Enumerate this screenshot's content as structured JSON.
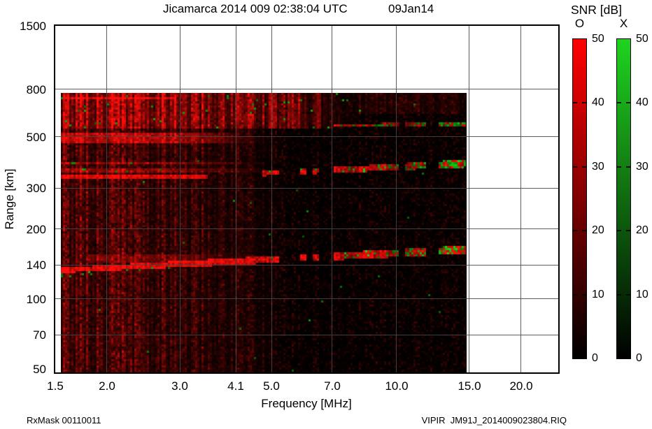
{
  "footer": {
    "left": "RxMask 00110011",
    "right": "VIPIR  JM91J_2014009023804.RIQ"
  },
  "chart_data": {
    "type": "heatmap",
    "title": "Jicamarca 2014 009 02:38:04 UTC",
    "date_label": "09Jan14",
    "xlabel": "Frequency [MHz]",
    "ylabel": "Range [km]",
    "x_scale": "log",
    "y_scale": "log",
    "xlim": [
      1.5,
      24.6
    ],
    "ylim": [
      48.3,
      1500
    ],
    "x_ticks": [
      {
        "v": 1.5,
        "label": "1.5"
      },
      {
        "v": 2.0,
        "label": "2.0"
      },
      {
        "v": 3.0,
        "label": "3.0"
      },
      {
        "v": 4.1,
        "label": "4.1"
      },
      {
        "v": 5.0,
        "label": "5.0"
      },
      {
        "v": 7.0,
        "label": "7.0"
      },
      {
        "v": 10.0,
        "label": "10.0"
      },
      {
        "v": 15.0,
        "label": "15.0"
      },
      {
        "v": 20.0,
        "label": "20.0"
      }
    ],
    "y_ticks": [
      {
        "v": 1500,
        "label": "1500"
      },
      {
        "v": 800,
        "label": "800"
      },
      {
        "v": 500,
        "label": "500"
      },
      {
        "v": 300,
        "label": "300"
      },
      {
        "v": 200,
        "label": "200"
      },
      {
        "v": 140,
        "label": "140"
      },
      {
        "v": 100,
        "label": "100"
      },
      {
        "v": 70,
        "label": "70"
      },
      {
        "v": 50,
        "label": "50"
      }
    ],
    "x_gridlines": [
      2.0,
      3.0,
      4.1,
      5.0,
      7.0,
      10.0,
      15.0,
      20.0
    ],
    "y_gridlines": [
      70,
      100,
      140,
      200,
      300,
      500,
      800
    ],
    "grid": true,
    "data_extent": {
      "f": [
        1.55,
        14.8
      ],
      "r": [
        48.3,
        770
      ]
    },
    "colorbar": {
      "title": "SNR [dB]",
      "min": 0,
      "max": 50,
      "ticks": [
        {
          "v": 50,
          "label": "50"
        },
        {
          "v": 40,
          "label": "40"
        },
        {
          "v": 30,
          "label": "30"
        },
        {
          "v": 20,
          "label": "20"
        },
        {
          "v": 10,
          "label": "10"
        },
        {
          "v": 0,
          "label": "0"
        }
      ],
      "dash_ticks": [
        40,
        30,
        20,
        10
      ],
      "modes": [
        {
          "label": "O",
          "top_color": "#ff0000",
          "bottom_color": "#000000"
        },
        {
          "label": "X",
          "top_color": "#1fd41f",
          "bottom_color": "#000000"
        }
      ]
    },
    "features": [
      {
        "name": "background-speckle",
        "kind": "speckle",
        "f": [
          1.55,
          14.8
        ],
        "r": [
          48,
          770
        ],
        "amp": 9,
        "green_speckle": 0.0015
      },
      {
        "name": "low-frequency-noise-haze",
        "kind": "haze",
        "f": [
          1.55,
          5.4
        ],
        "r": [
          48,
          770
        ],
        "amp": 26
      },
      {
        "name": "topside-spread-f-diffuse",
        "kind": "diffuse",
        "f": [
          1.55,
          8.2
        ],
        "r": [
          545,
          765
        ],
        "amp": 30,
        "fade_from": 4.6,
        "green_speckle": 0.015
      },
      {
        "name": "topside-faint-tail",
        "kind": "diffuse",
        "f": [
          8.0,
          14.8
        ],
        "r": [
          620,
          765
        ],
        "amp": 9,
        "fade_from": 14.0,
        "green_speckle": 0.006
      },
      {
        "name": "topside-cap-line",
        "kind": "hline",
        "f": [
          1.55,
          2.9
        ],
        "r": [
          728,
          744
        ],
        "amp": 26
      },
      {
        "name": "f-region-upper-band",
        "kind": "band",
        "f": [
          1.55,
          4.5
        ],
        "r": [
          468,
          516
        ],
        "amp": 34,
        "fade_from": 3.0
      },
      {
        "name": "f-region-strata",
        "kind": "strata",
        "f": [
          1.55,
          4.8
        ],
        "lines": [
          352,
          362,
          372,
          382
        ],
        "halfwidth": 3,
        "amp": 22,
        "fade_from": 2.8,
        "green_speckle": 0.06,
        "green_below_f": 2.7
      },
      {
        "name": "f-region-base-line",
        "kind": "hline",
        "f": [
          1.55,
          3.5
        ],
        "r": [
          330,
          342
        ],
        "amp": 38,
        "green_speckle": 0.05,
        "green_below_f": 2.7
      },
      {
        "name": "f-trace-oblique",
        "kind": "trace",
        "f": [
          4.75,
          14.8
        ],
        "r0": 346,
        "r1": 383,
        "halfwidth_km": 11,
        "amp": 40,
        "segmented": true,
        "green_frac": [
          0.08,
          0.55
        ]
      },
      {
        "name": "e-region-trace",
        "kind": "trace",
        "f": [
          1.55,
          14.8
        ],
        "r0": 133,
        "r1": 163,
        "halfwidth_km": 5,
        "amp": 42,
        "segmented_above_f": 4.75,
        "green_frac": [
          0.08,
          0.5
        ],
        "green_speckle_below_f": 2.9
      },
      {
        "name": "e-region-strata",
        "kind": "strata",
        "f": [
          1.8,
          4.4
        ],
        "lines": [
          146,
          152
        ],
        "halfwidth": 2,
        "amp": 15,
        "fade_from": 3.0
      },
      {
        "name": "interference-columns",
        "kind": "vstreaks",
        "f": [
          4.9,
          6.6
        ],
        "r": [
          540,
          768
        ],
        "amp": 30
      },
      {
        "name": "topside-thin-trace",
        "kind": "trace",
        "f": [
          6.8,
          14.8
        ],
        "r0": 560,
        "r1": 566,
        "halfwidth_km": 8,
        "amp": 34,
        "segmented": true,
        "green_frac": [
          0.12,
          0.55
        ]
      }
    ]
  }
}
